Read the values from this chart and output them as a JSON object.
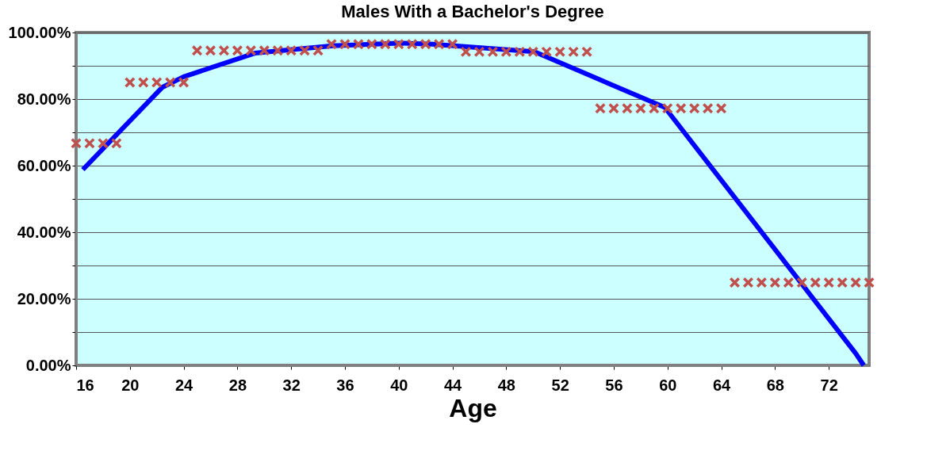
{
  "chart_data": {
    "type": "line",
    "title": "Males With a Bachelor's Degree",
    "xlabel": "Age",
    "xlim": [
      16,
      75
    ],
    "xticks": [
      16,
      20,
      24,
      28,
      32,
      36,
      40,
      44,
      48,
      52,
      56,
      60,
      64,
      68,
      72
    ],
    "ylim": [
      0,
      100
    ],
    "yticks": [
      {
        "value": 0,
        "label": "0.00%"
      },
      {
        "value": 10,
        "label": null
      },
      {
        "value": 20,
        "label": "20.00%"
      },
      {
        "value": 30,
        "label": null
      },
      {
        "value": 40,
        "label": "40.00%"
      },
      {
        "value": 50,
        "label": null
      },
      {
        "value": 60,
        "label": "60.00%"
      },
      {
        "value": 70,
        "label": null
      },
      {
        "value": 80,
        "label": "80.00%"
      },
      {
        "value": 90,
        "label": null
      },
      {
        "value": 100,
        "label": "100.00%"
      }
    ],
    "grid": "y",
    "series": [
      {
        "color": "#0000ff",
        "marker": "none",
        "line_style": "solid",
        "x": [
          16.5,
          22.4,
          24,
          29.3,
          35.1,
          40,
          42.5,
          50.1,
          59.8,
          74,
          74.6
        ],
        "values": [
          58.8,
          83.5,
          86.7,
          93.8,
          96,
          96.8,
          96.5,
          94.2,
          77.5,
          3.6,
          0
        ]
      },
      {
        "type": "scatter",
        "color": "#c0504d",
        "marker": "cross",
        "x": [
          16,
          17,
          18,
          19,
          20,
          21,
          22,
          23,
          24,
          25,
          26,
          27,
          28,
          29,
          30,
          31,
          32,
          33,
          34,
          35,
          36,
          37,
          38,
          39,
          40,
          41,
          42,
          43,
          44,
          45,
          46,
          47,
          48,
          49,
          50,
          51,
          52,
          53,
          54,
          55,
          56,
          57,
          58,
          59,
          60,
          61,
          62,
          63,
          64,
          65,
          66,
          67,
          68,
          69,
          70,
          71,
          72,
          73,
          74,
          75
        ],
        "values": [
          66.7,
          66.7,
          66.7,
          66.7,
          85,
          85,
          85,
          85,
          85,
          94.6,
          94.6,
          94.6,
          94.6,
          94.6,
          94.6,
          94.6,
          94.6,
          94.6,
          94.6,
          96.5,
          96.5,
          96.5,
          96.5,
          96.5,
          96.5,
          96.5,
          96.5,
          96.5,
          96.5,
          94.2,
          94.2,
          94.2,
          94.2,
          94.2,
          94.2,
          94.2,
          94.2,
          94.2,
          94.2,
          77.2,
          77.2,
          77.2,
          77.2,
          77.2,
          77.2,
          77.2,
          77.2,
          77.2,
          77.2,
          24.9,
          24.9,
          24.9,
          24.9,
          24.9,
          24.9,
          24.9,
          24.9,
          24.9,
          24.9,
          24.9
        ]
      }
    ]
  }
}
